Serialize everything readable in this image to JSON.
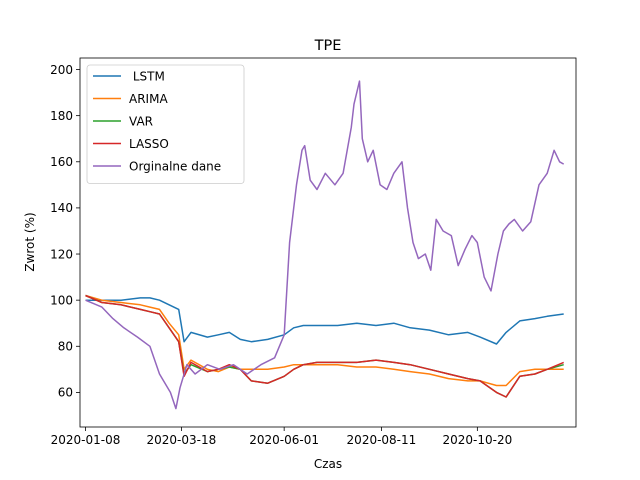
{
  "chart_data": {
    "type": "line",
    "title": "TPE",
    "xlabel": "Czas",
    "ylabel": "Zwrot (%)",
    "xlim": [
      "2020-01-04",
      "2020-12-31"
    ],
    "ylim": [
      45,
      205
    ],
    "xticks": [
      "2020-01-08",
      "2020-03-18",
      "2020-06-01",
      "2020-08-11",
      "2020-10-20"
    ],
    "yticks": [
      60,
      80,
      100,
      120,
      140,
      160,
      180,
      200
    ],
    "grid": false,
    "legend": "top-left",
    "series": [
      {
        "name": " LSTM",
        "color": "#1f77b4",
        "x": [
          "2020-01-08",
          "2020-01-20",
          "2020-02-03",
          "2020-02-17",
          "2020-02-24",
          "2020-03-02",
          "2020-03-09",
          "2020-03-16",
          "2020-03-20",
          "2020-03-25",
          "2020-04-06",
          "2020-04-14",
          "2020-04-22",
          "2020-04-30",
          "2020-05-08",
          "2020-05-20",
          "2020-06-01",
          "2020-06-08",
          "2020-06-15",
          "2020-06-25",
          "2020-07-10",
          "2020-07-24",
          "2020-08-07",
          "2020-08-20",
          "2020-09-01",
          "2020-09-15",
          "2020-09-29",
          "2020-10-13",
          "2020-10-22",
          "2020-11-03",
          "2020-11-10",
          "2020-11-20",
          "2020-12-01",
          "2020-12-10",
          "2020-12-22"
        ],
        "y": [
          100,
          100,
          100,
          101,
          101,
          100,
          98,
          96,
          82,
          86,
          84,
          85,
          86,
          83,
          82,
          83,
          85,
          88,
          89,
          89,
          89,
          90,
          89,
          90,
          88,
          87,
          85,
          86,
          84,
          81,
          86,
          91,
          92,
          93,
          94
        ]
      },
      {
        "name": "ARIMA",
        "color": "#ff7f0e",
        "x": [
          "2020-01-08",
          "2020-01-20",
          "2020-02-03",
          "2020-02-17",
          "2020-02-24",
          "2020-03-02",
          "2020-03-09",
          "2020-03-16",
          "2020-03-20",
          "2020-03-25",
          "2020-04-06",
          "2020-04-14",
          "2020-04-22",
          "2020-04-30",
          "2020-05-08",
          "2020-05-20",
          "2020-06-01",
          "2020-06-08",
          "2020-06-15",
          "2020-06-25",
          "2020-07-10",
          "2020-07-24",
          "2020-08-07",
          "2020-08-20",
          "2020-09-01",
          "2020-09-15",
          "2020-09-29",
          "2020-10-13",
          "2020-10-22",
          "2020-11-03",
          "2020-11-10",
          "2020-11-20",
          "2020-12-01",
          "2020-12-10",
          "2020-12-22"
        ],
        "y": [
          102,
          100,
          99,
          98,
          97,
          96,
          90,
          85,
          70,
          74,
          70,
          69,
          71,
          70,
          70,
          70,
          71,
          72,
          72,
          72,
          72,
          71,
          71,
          70,
          69,
          68,
          66,
          65,
          65,
          63,
          63,
          69,
          70,
          70,
          70
        ]
      },
      {
        "name": "VAR",
        "color": "#2ca02c",
        "x": [
          "2020-01-08",
          "2020-01-20",
          "2020-02-03",
          "2020-02-17",
          "2020-02-24",
          "2020-03-02",
          "2020-03-09",
          "2020-03-16",
          "2020-03-20",
          "2020-03-25",
          "2020-04-06",
          "2020-04-14",
          "2020-04-22",
          "2020-04-30",
          "2020-05-08",
          "2020-05-20",
          "2020-06-01",
          "2020-06-08",
          "2020-06-15",
          "2020-06-25",
          "2020-07-10",
          "2020-07-24",
          "2020-08-07",
          "2020-08-20",
          "2020-09-01",
          "2020-09-15",
          "2020-09-29",
          "2020-10-13",
          "2020-10-22",
          "2020-11-03",
          "2020-11-10",
          "2020-11-20",
          "2020-12-01",
          "2020-12-10",
          "2020-12-22"
        ],
        "y": [
          102,
          99,
          98,
          96,
          95,
          94,
          88,
          82,
          68,
          72,
          69,
          70,
          71,
          70,
          65,
          64,
          67,
          70,
          72,
          73,
          73,
          73,
          74,
          73,
          72,
          70,
          68,
          66,
          65,
          60,
          58,
          67,
          68,
          70,
          72
        ]
      },
      {
        "name": "LASSO",
        "color": "#d62728",
        "x": [
          "2020-01-08",
          "2020-01-20",
          "2020-02-03",
          "2020-02-17",
          "2020-02-24",
          "2020-03-02",
          "2020-03-09",
          "2020-03-16",
          "2020-03-20",
          "2020-03-25",
          "2020-04-06",
          "2020-04-14",
          "2020-04-22",
          "2020-04-30",
          "2020-05-08",
          "2020-05-20",
          "2020-06-01",
          "2020-06-08",
          "2020-06-15",
          "2020-06-25",
          "2020-07-10",
          "2020-07-24",
          "2020-08-07",
          "2020-08-20",
          "2020-09-01",
          "2020-09-15",
          "2020-09-29",
          "2020-10-13",
          "2020-10-22",
          "2020-11-03",
          "2020-11-10",
          "2020-11-20",
          "2020-12-01",
          "2020-12-10",
          "2020-12-22"
        ],
        "y": [
          102,
          99,
          98,
          96,
          95,
          94,
          88,
          82,
          67,
          73,
          69,
          70,
          72,
          70,
          65,
          64,
          67,
          70,
          72,
          73,
          73,
          73,
          74,
          73,
          72,
          70,
          68,
          66,
          65,
          60,
          58,
          67,
          68,
          70,
          73
        ]
      },
      {
        "name": "Orginalne dane",
        "color": "#9467bd",
        "x": [
          "2020-01-08",
          "2020-01-20",
          "2020-01-28",
          "2020-02-05",
          "2020-02-15",
          "2020-02-24",
          "2020-03-02",
          "2020-03-10",
          "2020-03-14",
          "2020-03-17",
          "2020-03-22",
          "2020-03-28",
          "2020-04-06",
          "2020-04-15",
          "2020-04-25",
          "2020-05-05",
          "2020-05-15",
          "2020-05-25",
          "2020-06-01",
          "2020-06-03",
          "2020-06-05",
          "2020-06-10",
          "2020-06-14",
          "2020-06-16",
          "2020-06-20",
          "2020-06-25",
          "2020-07-01",
          "2020-07-08",
          "2020-07-14",
          "2020-07-20",
          "2020-07-22",
          "2020-07-26",
          "2020-07-28",
          "2020-08-01",
          "2020-08-05",
          "2020-08-10",
          "2020-08-15",
          "2020-08-20",
          "2020-08-26",
          "2020-08-30",
          "2020-09-03",
          "2020-09-07",
          "2020-09-12",
          "2020-09-16",
          "2020-09-20",
          "2020-09-25",
          "2020-10-01",
          "2020-10-06",
          "2020-10-11",
          "2020-10-16",
          "2020-10-20",
          "2020-10-25",
          "2020-10-30",
          "2020-11-04",
          "2020-11-08",
          "2020-11-12",
          "2020-11-16",
          "2020-11-22",
          "2020-11-28",
          "2020-12-04",
          "2020-12-10",
          "2020-12-15",
          "2020-12-19",
          "2020-12-22"
        ],
        "y": [
          100,
          97,
          92,
          88,
          84,
          80,
          68,
          60,
          53,
          62,
          72,
          68,
          72,
          70,
          72,
          68,
          72,
          75,
          85,
          105,
          125,
          150,
          165,
          167,
          152,
          148,
          155,
          150,
          155,
          175,
          185,
          195,
          170,
          160,
          165,
          150,
          148,
          155,
          160,
          140,
          125,
          118,
          120,
          113,
          135,
          130,
          128,
          115,
          122,
          128,
          125,
          110,
          104,
          120,
          130,
          133,
          135,
          130,
          134,
          150,
          155,
          165,
          160,
          159
        ]
      }
    ]
  }
}
